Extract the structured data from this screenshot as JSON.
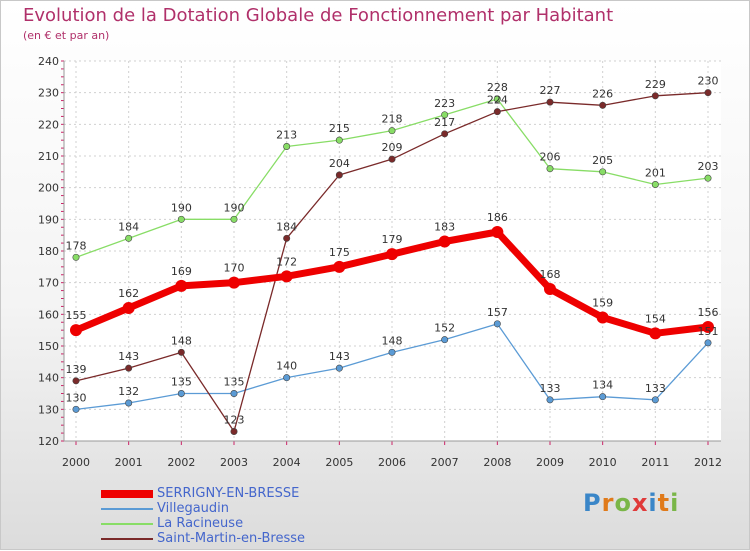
{
  "header": {
    "title": "Evolution de la Dotation Globale de Fonctionnement par Habitant",
    "subtitle": "(en € et par an)"
  },
  "logo": {
    "text": "Proxiti",
    "colors": [
      "#3a86c8",
      "#e07a1a",
      "#7ab648",
      "#e03a3a",
      "#3a86c8",
      "#e07a1a",
      "#7ab648"
    ]
  },
  "chart_data": {
    "type": "line",
    "title": "Evolution de la Dotation Globale de Fonctionnement par Habitant",
    "subtitle": "(en € et par an)",
    "xlabel": "",
    "ylabel": "",
    "x": [
      "2000",
      "2001",
      "2002",
      "2003",
      "2004",
      "2005",
      "2006",
      "2007",
      "2008",
      "2009",
      "2010",
      "2011",
      "2012"
    ],
    "ylim": [
      120,
      240
    ],
    "yticks": [
      120,
      130,
      140,
      150,
      160,
      170,
      180,
      190,
      200,
      210,
      220,
      230,
      240
    ],
    "grid": true,
    "legend_position": "bottom-left",
    "series": [
      {
        "name": "SERRIGNY-EN-BRESSE",
        "color": "#ee0000",
        "emphasis": "thick",
        "values": [
          155,
          162,
          169,
          170,
          172,
          175,
          179,
          183,
          186,
          168,
          159,
          154,
          156
        ]
      },
      {
        "name": "Villegaudin",
        "color": "#5b9bd5",
        "emphasis": "thin",
        "values": [
          130,
          132,
          135,
          135,
          140,
          143,
          148,
          152,
          157,
          133,
          134,
          133,
          151
        ]
      },
      {
        "name": "La Racineuse",
        "color": "#88dd66",
        "emphasis": "thin",
        "values": [
          178,
          184,
          190,
          190,
          213,
          215,
          218,
          223,
          228,
          206,
          205,
          201,
          203
        ]
      },
      {
        "name": "Saint-Martin-en-Bresse",
        "color": "#7a2a2a",
        "emphasis": "thin",
        "values": [
          139,
          143,
          148,
          123,
          184,
          204,
          209,
          217,
          224,
          227,
          226,
          229,
          230
        ]
      }
    ]
  }
}
